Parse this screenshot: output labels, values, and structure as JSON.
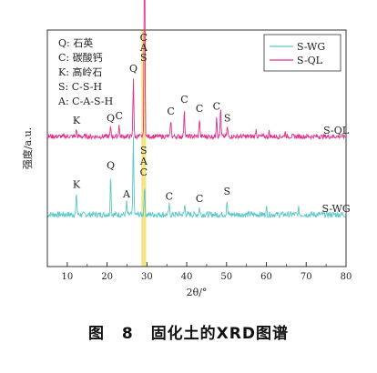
{
  "caption": {
    "label": "图",
    "number": "8",
    "text": "固化土的XRD图谱"
  },
  "chart_data": {
    "type": "line",
    "xlabel": "2θ/°",
    "ylabel": "强度/a.u.",
    "xlim": [
      5,
      80
    ],
    "x_ticks": [
      10,
      20,
      30,
      40,
      50,
      60,
      70,
      80
    ],
    "grid": false,
    "legend_position": "top-right",
    "key_lines": [
      "Q: 石英",
      "C: 碳酸钙",
      "K: 高岭石",
      "S: C-S-H",
      "A: C-A-S-H"
    ],
    "highlight_band": {
      "x_range": [
        28.6,
        29.8
      ],
      "color": "#f4e27a",
      "labels": [
        "C",
        "A",
        "S"
      ]
    },
    "series": [
      {
        "name": "S-WG",
        "color": "#5cc7c7",
        "baseline": 0.22,
        "noise": 0.025,
        "peaks": [
          {
            "x": 12.3,
            "h": 0.09,
            "label": "K"
          },
          {
            "x": 20.9,
            "h": 0.17,
            "label": "Q"
          },
          {
            "x": 24.9,
            "h": 0.05,
            "label": "A"
          },
          {
            "x": 26.6,
            "h": 0.33,
            "label": ""
          },
          {
            "x": 29.4,
            "h": 0.12,
            "label": ""
          },
          {
            "x": 35.6,
            "h": 0.04,
            "label": "C"
          },
          {
            "x": 39.5,
            "h": 0.04,
            "label": ""
          },
          {
            "x": 43.2,
            "h": 0.03,
            "label": "C"
          },
          {
            "x": 50.1,
            "h": 0.06,
            "label": "S"
          },
          {
            "x": 60.0,
            "h": 0.03,
            "label": ""
          },
          {
            "x": 68.1,
            "h": 0.025,
            "label": ""
          }
        ],
        "end_label": "S-WG"
      },
      {
        "name": "S-QL",
        "color": "#e0338a",
        "baseline": 0.55,
        "noise": 0.02,
        "peaks": [
          {
            "x": 12.3,
            "h": 0.03,
            "label": "K"
          },
          {
            "x": 20.9,
            "h": 0.04,
            "label": "Q"
          },
          {
            "x": 23.0,
            "h": 0.05,
            "label": "C"
          },
          {
            "x": 26.6,
            "h": 0.25,
            "label": "Q"
          },
          {
            "x": 29.4,
            "h": 0.87,
            "label": ""
          },
          {
            "x": 36.0,
            "h": 0.07,
            "label": "C"
          },
          {
            "x": 39.4,
            "h": 0.12,
            "label": "C"
          },
          {
            "x": 43.2,
            "h": 0.08,
            "label": "C"
          },
          {
            "x": 47.5,
            "h": 0.09,
            "label": "C"
          },
          {
            "x": 48.5,
            "h": 0.12,
            "label": ""
          },
          {
            "x": 50.2,
            "h": 0.04,
            "label": "S"
          },
          {
            "x": 57.4,
            "h": 0.03,
            "label": ""
          },
          {
            "x": 60.7,
            "h": 0.02,
            "label": ""
          },
          {
            "x": 64.7,
            "h": 0.02,
            "label": ""
          }
        ],
        "end_label": "S-QL"
      }
    ],
    "band_lower_labels": [
      "S",
      "A",
      "C"
    ]
  }
}
